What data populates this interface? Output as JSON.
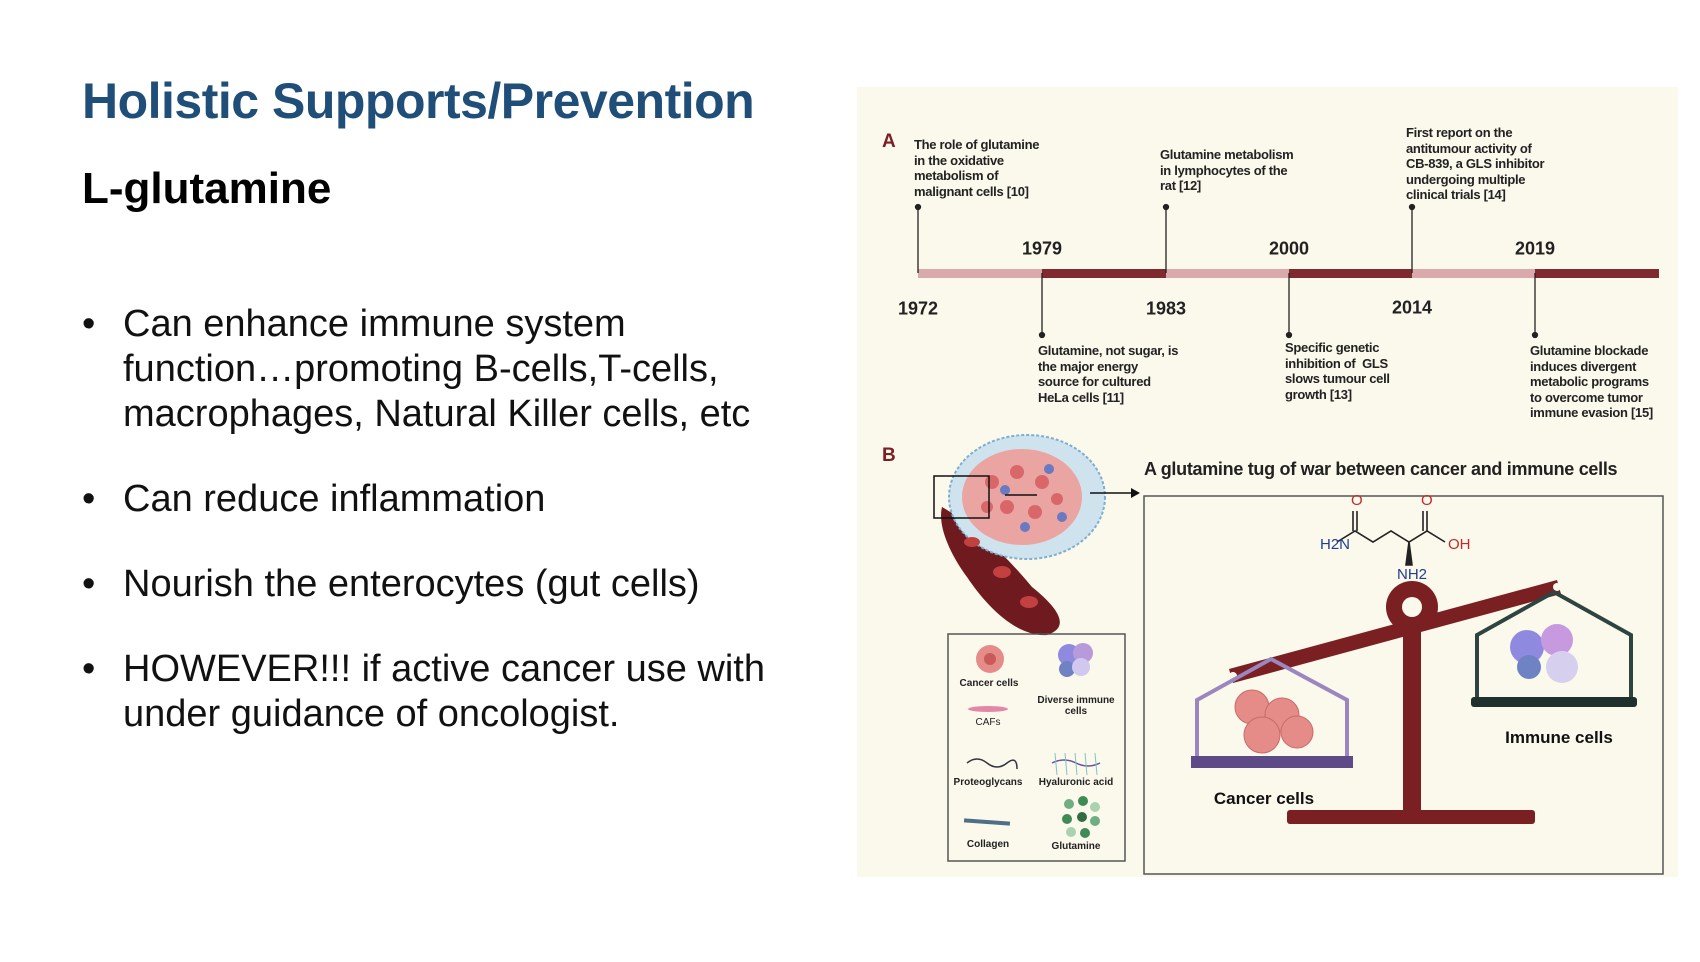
{
  "slide": {
    "title": "Holistic Supports/Prevention",
    "subtitle": "L-glutamine",
    "bullets": [
      "Can enhance immune system function…promoting B-cells,T-cells, macrophages, Natural Killer cells, etc",
      "Can reduce inflammation",
      "Nourish the enterocytes (gut cells)",
      "HOWEVER!!! if active cancer use with under guidance of oncologist."
    ]
  },
  "figure": {
    "panel_a": {
      "letter": "A",
      "years": [
        "1972",
        "1979",
        "1983",
        "2000",
        "2014",
        "2019"
      ],
      "events": [
        "The role of glutamine\nin the oxidative\nmetabolism of\nmalignant cells [10]",
        "Glutamine, not sugar, is\nthe major energy\nsource for cultured\nHeLa cells [11]",
        "Glutamine metabolism\nin lymphocytes of the\nrat [12]",
        "Specific genetic\ninhibition of  GLS\nslows tumour cell\ngrowth [13]",
        "First report on the\nantitumour activity of\nCB-839, a GLS inhibitor\nundergoing multiple\nclinical trials [14]",
        "Glutamine blockade\ninduces divergent\nmetabolic programs\nto overcome tumor\nimmune evasion [15]"
      ],
      "colors": {
        "light": "#d9a9ac",
        "dark": "#7e2a2e"
      }
    },
    "panel_b": {
      "letter": "B",
      "title": "A glutamine tug of war between cancer and immune cells",
      "molecule": {
        "h2n": "H2N",
        "oh": "OH",
        "nh2": "NH2",
        "o": "O"
      },
      "left_pan_label": "Cancer cells",
      "right_pan_label": "Immune cells",
      "legend": [
        "Cancer cells",
        "Diverse immune\ncells",
        "CAFs",
        "Proteoglycans",
        "Hyaluronic acid",
        "Collagen",
        "Glutamine"
      ]
    }
  }
}
